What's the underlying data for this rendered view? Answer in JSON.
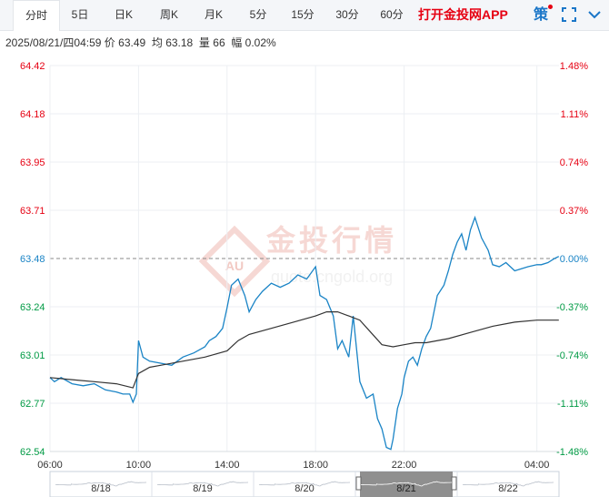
{
  "tabs": [
    {
      "label": "分时",
      "active": true
    },
    {
      "label": "5日"
    },
    {
      "label": "日K"
    },
    {
      "label": "周K"
    },
    {
      "label": "月K"
    },
    {
      "label": "5分"
    },
    {
      "label": "15分"
    },
    {
      "label": "30分"
    },
    {
      "label": "60分"
    }
  ],
  "app_link": "打开金投网APP",
  "strategy_label": "策",
  "icons": {
    "fullscreen": "fullscreen-icon",
    "collapse": "chevron-down-icon"
  },
  "info": {
    "datetime": "2025/08/21/四04:59",
    "price_label": "价",
    "price": "63.49",
    "avg_label": "均",
    "avg": "63.18",
    "vol_label": "量",
    "vol": "66",
    "amp_label": "幅",
    "amp": "0.02%"
  },
  "watermark": {
    "brand": "金投行情",
    "logo": "AU",
    "url": "quote.cngold.org"
  },
  "colors": {
    "price_line": "#1a84c6",
    "avg_line": "#333333",
    "up": "#e60012",
    "down": "#009a44",
    "grid": "#eceff3"
  },
  "chart_data": {
    "type": "line",
    "ylim": [
      62.54,
      64.42
    ],
    "y_ticks_left": [
      "64.42",
      "64.18",
      "63.95",
      "63.71",
      "63.48",
      "63.24",
      "63.01",
      "62.77",
      "62.54"
    ],
    "y_ticks_right": [
      "1.48%",
      "1.11%",
      "0.74%",
      "0.37%",
      "0.00%",
      "-0.37%",
      "-0.74%",
      "-1.11%",
      "-1.48%"
    ],
    "prev_close": 63.48,
    "x_ticks": [
      "06:00",
      "10:00",
      "14:00",
      "18:00",
      "22:00",
      "04:00"
    ],
    "x_hours": [
      0,
      4,
      8,
      12,
      16,
      22
    ],
    "x_range_hours": 23,
    "series": [
      {
        "role": "price",
        "x": [
          0,
          0.2,
          0.5,
          1,
          1.5,
          2,
          2.5,
          3,
          3.3,
          3.6,
          3.75,
          3.9,
          4,
          4.2,
          4.5,
          5,
          5.5,
          6,
          6.5,
          7,
          7.2,
          7.5,
          7.8,
          8,
          8.2,
          8.5,
          8.8,
          9,
          9.3,
          9.6,
          10,
          10.4,
          10.8,
          11.2,
          11.6,
          12,
          12.2,
          12.5,
          12.8,
          13,
          13.2,
          13.5,
          13.7,
          14,
          14.3,
          14.6,
          14.8,
          15,
          15.2,
          15.4,
          15.5,
          15.7,
          15.9,
          16,
          16.2,
          16.4,
          16.6,
          16.8,
          17,
          17.2,
          17.5,
          17.8,
          18,
          18.2,
          18.4,
          18.6,
          18.8,
          19,
          19.2,
          19.5,
          19.8,
          20,
          20.3,
          20.6,
          21,
          21.3,
          21.6,
          22,
          22.2,
          22.5,
          22.8,
          22.99
        ],
        "values": [
          62.9,
          62.88,
          62.9,
          62.87,
          62.86,
          62.87,
          62.84,
          62.83,
          62.82,
          62.82,
          62.78,
          62.82,
          63.08,
          63.0,
          62.98,
          62.97,
          62.96,
          63.0,
          63.02,
          63.05,
          63.08,
          63.1,
          63.14,
          63.24,
          63.35,
          63.38,
          63.3,
          63.22,
          63.28,
          63.32,
          63.36,
          63.34,
          63.36,
          63.4,
          63.38,
          63.44,
          63.3,
          63.28,
          63.2,
          63.04,
          63.08,
          63.0,
          63.2,
          62.88,
          62.8,
          62.82,
          62.7,
          62.65,
          62.56,
          62.55,
          62.6,
          62.75,
          62.82,
          62.9,
          62.98,
          63.0,
          62.96,
          63.04,
          63.1,
          63.14,
          63.3,
          63.35,
          63.42,
          63.5,
          63.56,
          63.6,
          63.52,
          63.62,
          63.68,
          63.58,
          63.52,
          63.45,
          63.44,
          63.46,
          63.42,
          63.43,
          63.44,
          63.45,
          63.45,
          63.46,
          63.48,
          63.49
        ]
      },
      {
        "role": "average",
        "x": [
          0,
          1,
          2,
          3,
          3.75,
          4,
          4.5,
          5,
          6,
          7,
          8,
          8.5,
          9,
          10,
          11,
          12,
          12.5,
          13,
          13.5,
          14,
          14.5,
          15,
          15.5,
          16,
          16.5,
          17,
          18,
          19,
          20,
          21,
          22,
          22.99
        ],
        "values": [
          62.9,
          62.89,
          62.88,
          62.87,
          62.85,
          62.92,
          62.95,
          62.96,
          62.98,
          63.0,
          63.03,
          63.08,
          63.11,
          63.14,
          63.17,
          63.2,
          63.22,
          63.22,
          63.2,
          63.18,
          63.12,
          63.06,
          63.05,
          63.06,
          63.07,
          63.07,
          63.09,
          63.12,
          63.15,
          63.17,
          63.18,
          63.18
        ]
      }
    ],
    "navigator": {
      "labels": [
        "8/18",
        "8/19",
        "8/20",
        "8/21",
        "8/22"
      ],
      "selected": "8/21"
    }
  }
}
